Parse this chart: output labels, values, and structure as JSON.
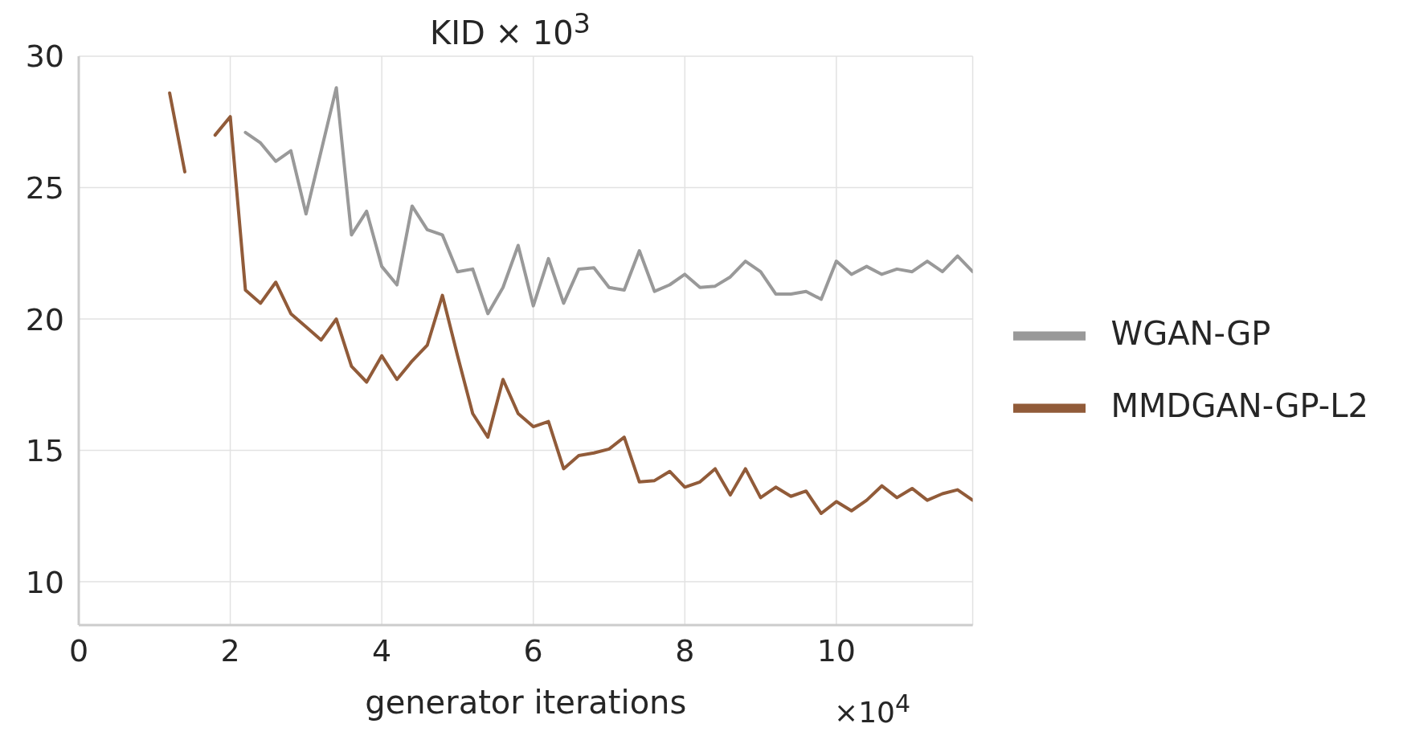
{
  "chart_data": {
    "type": "line",
    "title": "KID × 10$^{3}$",
    "xlabel": "generator iterations",
    "annotations": [
      "×10$^{4}$"
    ],
    "x": [
      1.2,
      1.4,
      1.6,
      1.8,
      2.0,
      2.2,
      2.4,
      2.6,
      2.8,
      3.0,
      3.2,
      3.4,
      3.6,
      3.8,
      4.0,
      4.2,
      4.4,
      4.6,
      4.8,
      5.0,
      5.2,
      5.4,
      5.6,
      5.8,
      6.0,
      6.2,
      6.4,
      6.6,
      6.8,
      7.0,
      7.2,
      7.4,
      7.6,
      7.8,
      8.0,
      8.2,
      8.4,
      8.6,
      8.8,
      9.0,
      9.2,
      9.4,
      9.6,
      9.8,
      10.0,
      10.2,
      10.4,
      10.6,
      10.8,
      11.0,
      11.2,
      11.4,
      11.6,
      11.8
    ],
    "series": [
      {
        "name": "WGAN-GP",
        "color": "#999999",
        "values": [
          null,
          null,
          null,
          null,
          null,
          27.1,
          26.7,
          26.0,
          26.4,
          24.0,
          26.4,
          28.8,
          23.2,
          24.1,
          22.0,
          21.3,
          24.3,
          23.4,
          23.2,
          21.8,
          21.9,
          20.2,
          21.2,
          22.8,
          20.5,
          22.3,
          20.6,
          21.9,
          21.95,
          21.2,
          21.1,
          22.6,
          21.05,
          21.3,
          21.7,
          21.2,
          21.25,
          21.6,
          22.2,
          21.8,
          20.95,
          20.95,
          21.05,
          20.75,
          22.2,
          21.7,
          22.0,
          21.7,
          21.9,
          21.8,
          22.2,
          21.8,
          22.4,
          21.8
        ]
      },
      {
        "name": "MMDGAN-GP-L2",
        "color": "#915b39",
        "values": [
          28.6,
          25.6,
          null,
          27.0,
          27.7,
          21.1,
          20.6,
          21.4,
          20.2,
          19.7,
          19.2,
          20.0,
          18.2,
          17.6,
          18.6,
          17.7,
          18.4,
          19.0,
          20.9,
          18.6,
          16.4,
          15.5,
          17.7,
          16.4,
          15.9,
          16.1,
          14.3,
          14.8,
          14.9,
          15.05,
          15.5,
          13.8,
          13.85,
          14.2,
          13.6,
          13.8,
          14.3,
          13.3,
          14.3,
          13.2,
          13.6,
          13.25,
          13.45,
          12.6,
          13.05,
          12.7,
          13.1,
          13.65,
          13.2,
          13.55,
          13.1,
          13.35,
          13.5,
          13.1
        ]
      }
    ],
    "xlim": [
      0,
      11.8
    ],
    "xticks": [
      0,
      2,
      4,
      6,
      8,
      10
    ],
    "ylim": [
      8.35,
      30
    ],
    "yticks": [
      10,
      15,
      20,
      25,
      30
    ],
    "grid": true,
    "legend": "right",
    "marker": "none",
    "line_style": "solid"
  }
}
